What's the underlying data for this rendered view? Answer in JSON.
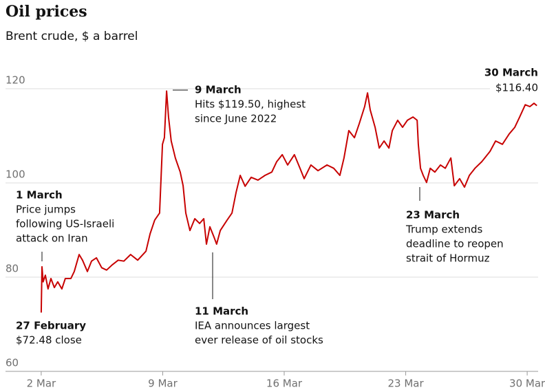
{
  "chart_data": {
    "type": "line",
    "title": "Oil prices",
    "subtitle": "Brent crude, $ a barrel",
    "x": [
      0,
      0.03,
      0.08,
      0.17,
      0.28,
      0.4,
      0.54,
      0.68,
      0.85,
      0.99,
      1.22,
      1.36,
      1.56,
      1.7,
      1.9,
      2.07,
      2.27,
      2.49,
      2.69,
      2.92,
      3.17,
      3.4,
      3.68,
      3.97,
      4.31,
      4.48,
      4.67,
      4.87,
      4.99,
      5.07,
      5.16,
      5.24,
      5.35,
      5.52,
      5.72,
      5.84,
      5.95,
      6.12,
      6.32,
      6.52,
      6.69,
      6.8,
      6.94,
      7.11,
      7.22,
      7.37,
      7.65,
      7.85,
      8.02,
      8.19,
      8.39,
      8.64,
      8.92,
      9.21,
      9.49,
      9.69,
      9.92,
      10.14,
      10.42,
      10.65,
      10.82,
      11.1,
      11.39,
      11.76,
      12.04,
      12.29,
      12.46,
      12.66,
      12.89,
      13.09,
      13.31,
      13.43,
      13.54,
      13.74,
      13.91,
      14.11,
      14.31,
      14.45,
      14.67,
      14.87,
      15.07,
      15.3,
      15.47,
      15.52,
      15.61,
      15.72,
      15.86,
      16.01,
      16.2,
      16.43,
      16.63,
      16.86,
      17.0,
      17.22,
      17.42,
      17.62,
      17.85,
      18.13,
      18.47,
      18.7,
      18.98,
      19.26,
      19.49,
      19.69,
      19.92,
      20.11,
      20.28,
      20.4
    ],
    "series": [
      {
        "name": "Brent crude",
        "color": "#c70000",
        "values": [
          72.48,
          82.2,
          79.0,
          80.4,
          77.5,
          79.7,
          77.8,
          79.0,
          77.5,
          79.7,
          79.7,
          81.2,
          84.8,
          83.6,
          81.2,
          83.4,
          84.1,
          82.0,
          81.5,
          82.6,
          83.6,
          83.4,
          84.8,
          83.6,
          85.5,
          89.2,
          92.1,
          93.6,
          108.2,
          109.6,
          119.5,
          114.0,
          108.9,
          105.3,
          102.3,
          99.4,
          93.6,
          89.9,
          92.4,
          91.4,
          92.4,
          87.0,
          90.7,
          88.5,
          87.0,
          89.9,
          92.1,
          93.6,
          98.0,
          101.6,
          99.3,
          101.2,
          100.6,
          101.6,
          102.3,
          104.5,
          106.0,
          103.8,
          106.0,
          103.1,
          100.9,
          103.8,
          102.6,
          103.8,
          103.1,
          101.6,
          105.3,
          111.1,
          109.6,
          112.6,
          116.2,
          119.1,
          115.5,
          111.8,
          107.4,
          108.9,
          107.4,
          111.1,
          113.3,
          111.8,
          113.3,
          114.0,
          113.3,
          108.2,
          103.1,
          101.6,
          100.1,
          103.1,
          102.3,
          103.8,
          103.1,
          105.3,
          99.4,
          100.9,
          99.1,
          101.6,
          103.1,
          104.5,
          106.7,
          108.9,
          108.2,
          110.4,
          111.8,
          114.0,
          116.6,
          116.2,
          116.9,
          116.4
        ]
      }
    ],
    "xlim": [
      -1.47,
      20.45
    ],
    "xticks": [
      {
        "value": 0,
        "label": "2 Mar"
      },
      {
        "value": 5,
        "label": "9 Mar"
      },
      {
        "value": 10,
        "label": "16 Mar"
      },
      {
        "value": 15,
        "label": "23 Mar"
      },
      {
        "value": 20,
        "label": "30 Mar"
      }
    ],
    "ylim": [
      60,
      121.6
    ],
    "yticks": [
      60,
      80,
      100,
      120
    ],
    "grid": true,
    "annotations": [
      {
        "title": "27 February",
        "lines": [
          "$72.48 close"
        ]
      },
      {
        "title": "1 March",
        "lines": [
          "Price jumps",
          "following US-Israeli",
          "attack on Iran"
        ]
      },
      {
        "title": "9 March",
        "lines": [
          "Hits $119.50, highest",
          "since June 2022"
        ]
      },
      {
        "title": "11 March",
        "lines": [
          "IEA announces largest",
          "ever release of oil stocks"
        ]
      },
      {
        "title": "23 March",
        "lines": [
          "Trump extends",
          "deadline to reopen",
          "strait of Hormuz"
        ]
      },
      {
        "title": "30 March",
        "lines": [
          "$116.40"
        ]
      }
    ]
  }
}
